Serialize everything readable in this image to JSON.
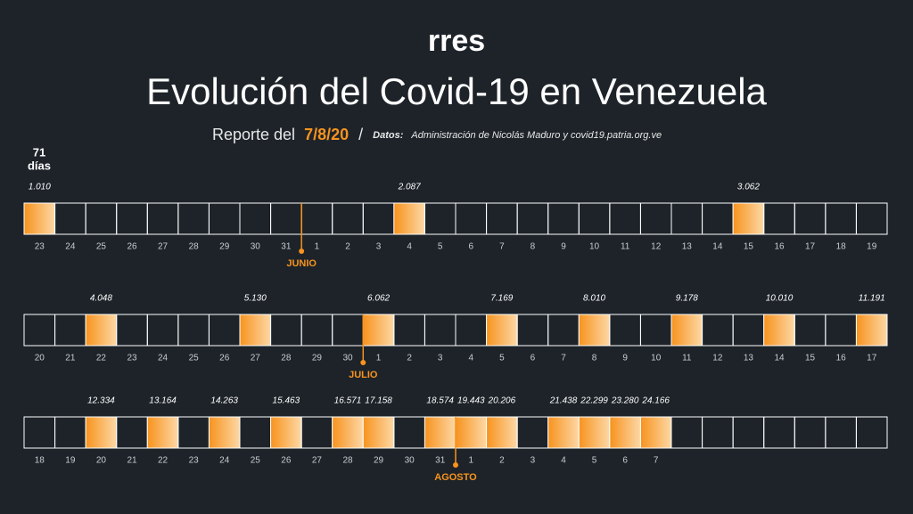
{
  "header": {
    "logo": "rres",
    "title": "Evolución del Covid-19 en Venezuela",
    "report_prefix": "Reporte del",
    "report_date": "7/8/20",
    "separator": "/",
    "source_label": "Datos:",
    "source": "Administración de Nicolás Maduro y covid19.patria.org.ve"
  },
  "counter": {
    "number": "71",
    "unit": "días"
  },
  "rows": [
    {
      "cells": [
        {
          "day": "23",
          "count": "1.010"
        },
        {
          "day": "24"
        },
        {
          "day": "25"
        },
        {
          "day": "26"
        },
        {
          "day": "27"
        },
        {
          "day": "28"
        },
        {
          "day": "29"
        },
        {
          "day": "30"
        },
        {
          "day": "31"
        },
        {
          "day": "1",
          "month": "JUNIO"
        },
        {
          "day": "2"
        },
        {
          "day": "3"
        },
        {
          "day": "4",
          "count": "2.087"
        },
        {
          "day": "5"
        },
        {
          "day": "6"
        },
        {
          "day": "7"
        },
        {
          "day": "8"
        },
        {
          "day": "9"
        },
        {
          "day": "10"
        },
        {
          "day": "11"
        },
        {
          "day": "12"
        },
        {
          "day": "13"
        },
        {
          "day": "14"
        },
        {
          "day": "15",
          "count": "3.062"
        },
        {
          "day": "16"
        },
        {
          "day": "17"
        },
        {
          "day": "18"
        },
        {
          "day": "19"
        }
      ]
    },
    {
      "cells": [
        {
          "day": "20"
        },
        {
          "day": "21"
        },
        {
          "day": "22",
          "count": "4.048"
        },
        {
          "day": "23"
        },
        {
          "day": "24"
        },
        {
          "day": "25"
        },
        {
          "day": "26"
        },
        {
          "day": "27",
          "count": "5.130"
        },
        {
          "day": "28"
        },
        {
          "day": "29"
        },
        {
          "day": "30"
        },
        {
          "day": "1",
          "month": "JULIO",
          "count": "6.062"
        },
        {
          "day": "2"
        },
        {
          "day": "3"
        },
        {
          "day": "4"
        },
        {
          "day": "5",
          "count": "7.169"
        },
        {
          "day": "6"
        },
        {
          "day": "7"
        },
        {
          "day": "8",
          "count": "8.010"
        },
        {
          "day": "9"
        },
        {
          "day": "10"
        },
        {
          "day": "11",
          "count": "9.178"
        },
        {
          "day": "12"
        },
        {
          "day": "13"
        },
        {
          "day": "14",
          "count": "10.010"
        },
        {
          "day": "15"
        },
        {
          "day": "16"
        },
        {
          "day": "17",
          "count": "11.191"
        }
      ]
    },
    {
      "cells": [
        {
          "day": "18"
        },
        {
          "day": "19"
        },
        {
          "day": "20",
          "count": "12.334"
        },
        {
          "day": "21"
        },
        {
          "day": "22",
          "count": "13.164"
        },
        {
          "day": "23"
        },
        {
          "day": "24",
          "count": "14.263"
        },
        {
          "day": "25"
        },
        {
          "day": "26",
          "count": "15.463"
        },
        {
          "day": "27"
        },
        {
          "day": "28",
          "count": "16.571"
        },
        {
          "day": "29",
          "count": "17.158"
        },
        {
          "day": "30"
        },
        {
          "day": "31",
          "count": "18.574"
        },
        {
          "day": "1",
          "month": "AGOSTO",
          "count": "19.443"
        },
        {
          "day": "2",
          "count": "20.206"
        },
        {
          "day": "3"
        },
        {
          "day": "4",
          "count": "21.438"
        },
        {
          "day": "5",
          "count": "22.299"
        },
        {
          "day": "6",
          "count": "23.280"
        },
        {
          "day": "7",
          "count": "24.166"
        }
      ]
    }
  ]
}
